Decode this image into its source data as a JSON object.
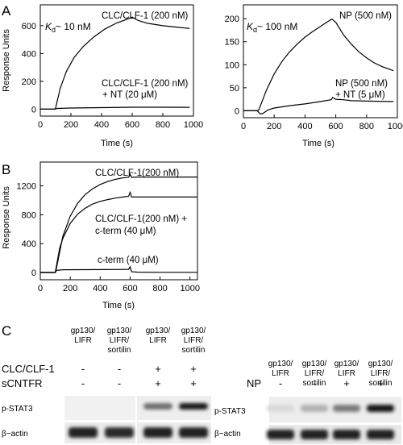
{
  "panel_letters": {
    "a": "A",
    "b": "B",
    "c": "C"
  },
  "chart_data": [
    {
      "id": "a_left",
      "type": "line",
      "ylabel": "Response Units",
      "xlabel": "Time (s)",
      "xlim": [
        0,
        1000
      ],
      "ylim": [
        -50,
        750
      ],
      "xticks": [
        0,
        200,
        400,
        600,
        800,
        1000
      ],
      "yticks": [
        0,
        200,
        400,
        600
      ],
      "annotations": {
        "kd_k": "K",
        "kd_sub": "d",
        "kd_rest": "~ 10 nM"
      },
      "series": [
        {
          "name": "CLC/CLF-1 (200 nM)",
          "label_lines": [
            "CLC/CLF-1 (200 nM)"
          ],
          "x": [
            0,
            95,
            100,
            130,
            170,
            220,
            280,
            350,
            420,
            500,
            580,
            600,
            640,
            700,
            800,
            900,
            975
          ],
          "y": [
            0,
            0,
            8,
            150,
            270,
            370,
            450,
            520,
            575,
            620,
            652,
            662,
            637,
            617,
            600,
            588,
            580
          ]
        },
        {
          "name": "CLC/CLF-1 (200 nM) + NT (20 μM)",
          "label_lines": [
            "CLC/CLF-1 (200 nM)",
            "+ NT (20 μM)"
          ],
          "x": [
            0,
            95,
            110,
            200,
            400,
            600,
            800,
            975
          ],
          "y": [
            0,
            0,
            5,
            8,
            11,
            14,
            14,
            13
          ]
        }
      ]
    },
    {
      "id": "a_right",
      "type": "line",
      "ylabel": "",
      "xlabel": "Time (s)",
      "xlim": [
        0,
        1000
      ],
      "ylim": [
        -15,
        230
      ],
      "xticks": [
        0,
        200,
        400,
        600,
        800,
        1000
      ],
      "yticks": [
        0,
        50,
        100,
        150,
        200
      ],
      "annotations": {
        "kd_k": "K",
        "kd_sub": "d",
        "kd_rest": "~ 100 nM"
      },
      "series": [
        {
          "name": "NP (500 nM)",
          "label_lines": [
            "NP (500 nM)"
          ],
          "x": [
            0,
            90,
            100,
            150,
            200,
            250,
            300,
            350,
            400,
            450,
            500,
            540,
            575,
            600,
            650,
            700,
            750,
            800,
            850,
            900,
            975
          ],
          "y": [
            0,
            0,
            2,
            45,
            80,
            107,
            128,
            145,
            160,
            172,
            183,
            192,
            199,
            192,
            165,
            145,
            128,
            115,
            104,
            96,
            87
          ]
        },
        {
          "name": "NP (500 nM) + NT (5 μM)",
          "label_lines": [
            "NP (500 nM)",
            "+ NT (5 μM)"
          ],
          "x": [
            0,
            90,
            110,
            125,
            160,
            200,
            300,
            400,
            500,
            570,
            580,
            600,
            650,
            700,
            800,
            975
          ],
          "y": [
            0,
            0,
            -7,
            -6,
            2,
            6,
            11,
            15,
            20,
            24,
            29,
            25,
            24,
            22,
            21,
            20
          ]
        }
      ]
    },
    {
      "id": "b",
      "type": "line",
      "ylabel": "Response Units",
      "xlabel": "Time (s)",
      "xlim": [
        0,
        1050
      ],
      "ylim": [
        -100,
        1530
      ],
      "xticks": [
        0,
        200,
        400,
        600,
        800,
        1000
      ],
      "yticks": [
        0,
        400,
        800,
        1200
      ],
      "series": [
        {
          "name": "CLC/CLF-1(200 nM)",
          "label_lines": [
            "CLC/CLF-1(200 nM)"
          ],
          "x": [
            0,
            100,
            105,
            150,
            200,
            250,
            300,
            350,
            400,
            450,
            500,
            550,
            590,
            600,
            610,
            650,
            700,
            800,
            900,
            1000,
            1050
          ],
          "y": [
            0,
            0,
            30,
            500,
            780,
            960,
            1080,
            1160,
            1220,
            1260,
            1290,
            1310,
            1320,
            1360,
            1318,
            1322,
            1322,
            1322,
            1322,
            1322,
            1322
          ]
        },
        {
          "name": "CLC/CLF-1(200 nM) + c-term (40 μM)",
          "label_lines": [
            "CLC/CLF-1(200 nM) +",
            "c-term (40 μM)"
          ],
          "x": [
            0,
            100,
            105,
            130,
            150,
            200,
            250,
            300,
            350,
            400,
            450,
            500,
            550,
            590,
            600,
            610,
            650,
            700,
            800,
            900,
            1000,
            1050
          ],
          "y": [
            0,
            0,
            60,
            340,
            470,
            680,
            810,
            890,
            950,
            985,
            1010,
            1030,
            1045,
            1055,
            1110,
            1045,
            1045,
            1045,
            1045,
            1045,
            1045,
            1045
          ]
        },
        {
          "name": "c-term (40 μM)",
          "label_lines": [
            "c-term (40 μM)"
          ],
          "x": [
            0,
            100,
            108,
            150,
            300,
            500,
            590,
            600,
            610,
            650,
            800,
            1050
          ],
          "y": [
            0,
            0,
            30,
            38,
            40,
            42,
            44,
            80,
            10,
            5,
            3,
            3
          ]
        }
      ]
    }
  ],
  "panel_c": {
    "left": {
      "columns": [
        "gp130/\nLIFR",
        "gp130/\nLIFR/\nsortilin",
        "gp130/\nLIFR",
        "gp130/\nLIFR/\nsortilin"
      ],
      "treatments": [
        {
          "label": "CLC/CLF-1",
          "values": [
            "-",
            "-",
            "+",
            "+"
          ]
        },
        {
          "label": "sCNTFR",
          "values": [
            "-",
            "-",
            "+",
            "+"
          ]
        }
      ],
      "blots": [
        {
          "label": "p-STAT3",
          "intensities": [
            0.0,
            0.0,
            0.55,
            0.95
          ]
        },
        {
          "label": "β−actin",
          "intensities": [
            0.9,
            0.85,
            0.9,
            0.9
          ]
        }
      ]
    },
    "right": {
      "columns": [
        "gp130/\nLIFR",
        "gp130/\nLIFR/\nsortilin",
        "gp130/\nLIFR",
        "gp130/\nLIFR/\nsortilin"
      ],
      "treatments": [
        {
          "label": "NP",
          "values": [
            "-",
            "-",
            "+",
            "+"
          ]
        }
      ],
      "blots": [
        {
          "label": "p-STAT3",
          "intensities": [
            0.08,
            0.25,
            0.5,
            0.95
          ]
        },
        {
          "label": "β−actin",
          "intensities": [
            0.9,
            0.9,
            0.9,
            0.9
          ]
        }
      ]
    }
  }
}
